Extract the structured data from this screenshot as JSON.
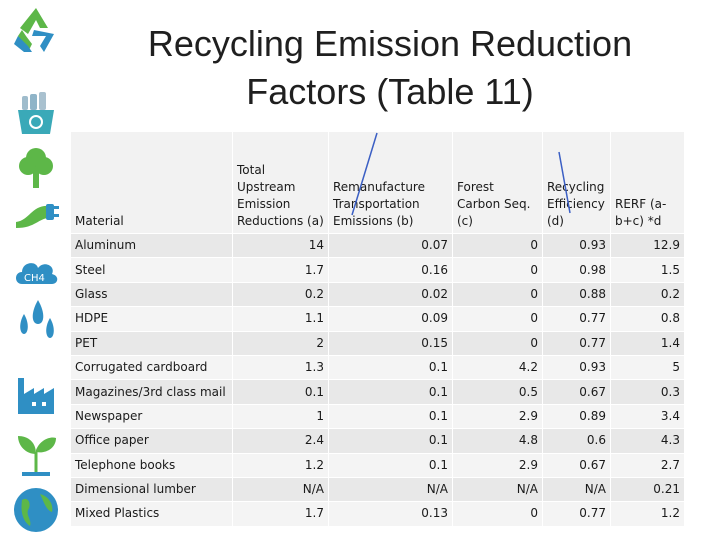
{
  "title": "Recycling Emission Reduction Factors (Table 11)",
  "table": {
    "headers": [
      "Material",
      "Total Upstream Emission Reductions (a)",
      "Remanufacture Transportation Emissions (b)",
      "Forest Carbon Seq. (c)",
      "Recycling Efficiency (d)",
      "RERF (a-b+c) *d"
    ],
    "rows": [
      [
        "Aluminum",
        "14",
        "0.07",
        "0",
        "0.93",
        "12.9"
      ],
      [
        "Steel",
        "1.7",
        "0.16",
        "0",
        "0.98",
        "1.5"
      ],
      [
        "Glass",
        "0.2",
        "0.02",
        "0",
        "0.88",
        "0.2"
      ],
      [
        "HDPE",
        "1.1",
        "0.09",
        "0",
        "0.77",
        "0.8"
      ],
      [
        "PET",
        "2",
        "0.15",
        "0",
        "0.77",
        "1.4"
      ],
      [
        "Corrugated cardboard",
        "1.3",
        "0.1",
        "4.2",
        "0.93",
        "5"
      ],
      [
        "Magazines/3rd class mail",
        "0.1",
        "0.1",
        "0.5",
        "0.67",
        "0.3"
      ],
      [
        "Newspaper",
        "1",
        "0.1",
        "2.9",
        "0.89",
        "3.4"
      ],
      [
        "Office paper",
        "2.4",
        "0.1",
        "4.8",
        "0.6",
        "4.3"
      ],
      [
        "Telephone books",
        "1.2",
        "0.1",
        "2.9",
        "0.67",
        "2.7"
      ],
      [
        "Dimensional lumber",
        "N/A",
        "N/A",
        "N/A",
        "N/A",
        "0.21"
      ],
      [
        "Mixed Plastics",
        "1.7",
        "0.13",
        "0",
        "0.77",
        "1.2"
      ]
    ]
  },
  "colors": {
    "green": "#5db748",
    "blue": "#2f8fc4",
    "teal": "#3aa9b8",
    "grey": "#8a96a0"
  },
  "icons": [
    "recycle-icon",
    "recycle-bin-icon",
    "tree-icon",
    "plug-icon",
    "ch4-cloud-icon",
    "water-drops-icon",
    "factory-icon",
    "sprout-icon",
    "globe-icon"
  ]
}
